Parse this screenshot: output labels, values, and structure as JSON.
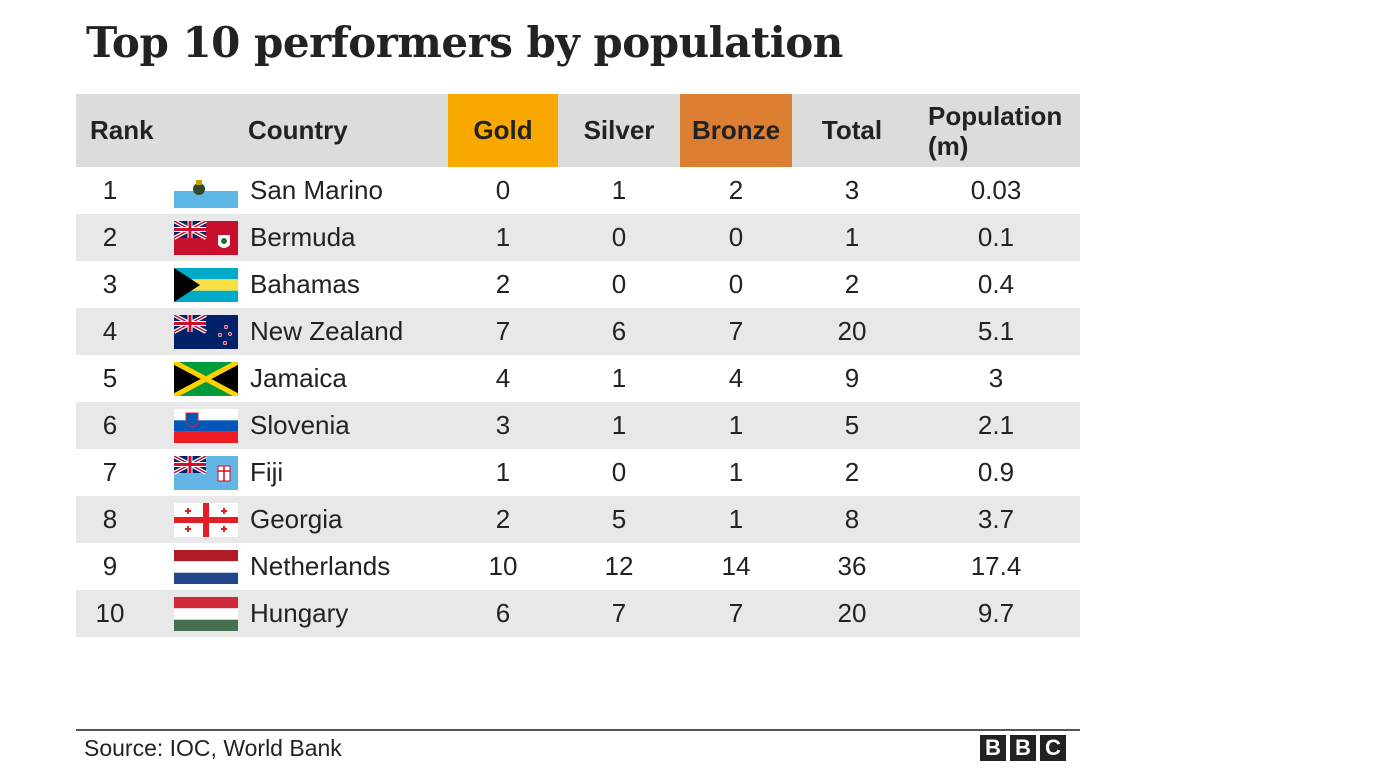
{
  "title": "Top 10 performers by population",
  "headers": {
    "rank": "Rank",
    "country": "Country",
    "gold": "Gold",
    "silver": "Silver",
    "bronze": "Bronze",
    "total": "Total",
    "population_line1": "Population",
    "population_line2": "(m)"
  },
  "colors": {
    "gold": "#f9a800",
    "bronze": "#dd7f32",
    "header_bg": "#dcdcdc",
    "stripe": "#e8e8e8"
  },
  "rows": [
    {
      "rank": "1",
      "flag": "san-marino-flag",
      "country": "San Marino",
      "gold": "0",
      "silver": "1",
      "bronze": "2",
      "total": "3",
      "population": "0.03"
    },
    {
      "rank": "2",
      "flag": "bermuda-flag",
      "country": "Bermuda",
      "gold": "1",
      "silver": "0",
      "bronze": "0",
      "total": "1",
      "population": "0.1"
    },
    {
      "rank": "3",
      "flag": "bahamas-flag",
      "country": "Bahamas",
      "gold": "2",
      "silver": "0",
      "bronze": "0",
      "total": "2",
      "population": "0.4"
    },
    {
      "rank": "4",
      "flag": "new-zealand-flag",
      "country": "New Zealand",
      "gold": "7",
      "silver": "6",
      "bronze": "7",
      "total": "20",
      "population": "5.1"
    },
    {
      "rank": "5",
      "flag": "jamaica-flag",
      "country": "Jamaica",
      "gold": "4",
      "silver": "1",
      "bronze": "4",
      "total": "9",
      "population": "3"
    },
    {
      "rank": "6",
      "flag": "slovenia-flag",
      "country": "Slovenia",
      "gold": "3",
      "silver": "1",
      "bronze": "1",
      "total": "5",
      "population": "2.1"
    },
    {
      "rank": "7",
      "flag": "fiji-flag",
      "country": "Fiji",
      "gold": "1",
      "silver": "0",
      "bronze": "1",
      "total": "2",
      "population": "0.9"
    },
    {
      "rank": "8",
      "flag": "georgia-flag",
      "country": "Georgia",
      "gold": "2",
      "silver": "5",
      "bronze": "1",
      "total": "8",
      "population": "3.7"
    },
    {
      "rank": "9",
      "flag": "netherlands-flag",
      "country": "Netherlands",
      "gold": "10",
      "silver": "12",
      "bronze": "14",
      "total": "36",
      "population": "17.4"
    },
    {
      "rank": "10",
      "flag": "hungary-flag",
      "country": "Hungary",
      "gold": "6",
      "silver": "7",
      "bronze": "7",
      "total": "20",
      "population": "9.7"
    }
  ],
  "source": "Source: IOC, World Bank",
  "logo": [
    "B",
    "B",
    "C"
  ]
}
